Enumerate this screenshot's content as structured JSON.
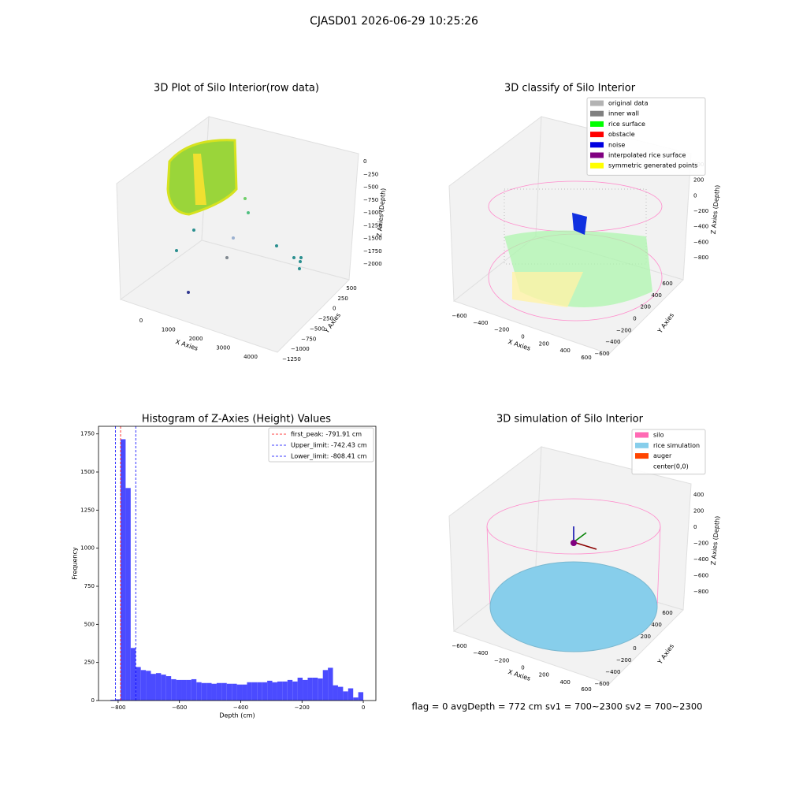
{
  "title": "CJASD01 2026-06-29 10:25:26",
  "footer": "flag = 0     avgDepth = 772 cm  sv1 = 700~2300  sv2 = 700~2300",
  "chart_data": [
    {
      "type": "scatter3d",
      "title": "3D Plot of Silo Interior(row data)",
      "xlabel": "X Axies",
      "ylabel": "Y Axies",
      "zlabel": "Z Axies (Depth)",
      "xticks": [
        0,
        1000,
        2000,
        3000,
        4000
      ],
      "yticks": [
        500,
        250,
        0,
        {
          "value": -250,
          "label": "−250"
        },
        {
          "value": -500,
          "label": "−500"
        },
        {
          "value": -750,
          "label": "−750"
        },
        {
          "value": -1000,
          "label": "−1000"
        },
        {
          "value": -1250,
          "label": "−1250"
        }
      ],
      "zticks": [
        0,
        {
          "value": -250,
          "label": "−250"
        },
        {
          "value": -500,
          "label": "−500"
        },
        {
          "value": -750,
          "label": "−750"
        },
        {
          "value": -1000,
          "label": "−1000"
        },
        {
          "value": -1250,
          "label": "−1250"
        },
        {
          "value": -1500,
          "label": "−1500"
        },
        {
          "value": -1750,
          "label": "−1750"
        },
        {
          "value": -2000,
          "label": "−2000"
        }
      ]
    },
    {
      "type": "scatter3d",
      "title": "3D classify of Silo Interior",
      "xlabel": "X Axies",
      "ylabel": "Y Axies",
      "zlabel": "Z Axies (Depth)",
      "xticks": [
        {
          "value": -600,
          "label": "−600"
        },
        {
          "value": -400,
          "label": "−400"
        },
        {
          "value": -200,
          "label": "−200"
        },
        0,
        200,
        400,
        600
      ],
      "yticks": [
        {
          "value": -600,
          "label": "−600"
        },
        {
          "value": -400,
          "label": "−400"
        },
        {
          "value": -200,
          "label": "−200"
        },
        0,
        200,
        400,
        600
      ],
      "zticks": [
        400,
        200,
        0,
        {
          "value": -200,
          "label": "−200"
        },
        {
          "value": -400,
          "label": "−400"
        },
        {
          "value": -600,
          "label": "−600"
        },
        {
          "value": -800,
          "label": "−800"
        }
      ],
      "legend": [
        {
          "name": "original data",
          "color": "#b3b3b3"
        },
        {
          "name": "inner wall",
          "color": "#808080"
        },
        {
          "name": "rice surface",
          "color": "#00ff00"
        },
        {
          "name": "obstacle",
          "color": "#ff0000"
        },
        {
          "name": "noise",
          "color": "#0000e0"
        },
        {
          "name": "interpolated rice surface",
          "color": "#800080"
        },
        {
          "name": "symmetric generated points",
          "color": "#ffff00"
        }
      ]
    },
    {
      "type": "histogram",
      "title": "Histogram of Z-Axies (Height) Values",
      "xlabel": "Depth (cm)",
      "ylabel": "Frequency",
      "color": "#4b4bff",
      "bins": [
        -825,
        -808.5,
        -792,
        -775.5,
        -759,
        -742.5,
        -726,
        -709.5,
        -693,
        -676.5,
        -660,
        -643.5,
        -627,
        -610.5,
        -594,
        -577.5,
        -561,
        -544.5,
        -528,
        -511.5,
        -495,
        -478.5,
        -462,
        -445.5,
        -429,
        -412.5,
        -396,
        -379.5,
        -363,
        -346.5,
        -330,
        -313.5,
        -297,
        -280.5,
        -264,
        -247.5,
        -231,
        -214.5,
        -198,
        -181.5,
        -165,
        -148.5,
        -132,
        -115.5,
        -99,
        -82.5,
        -66,
        -49.5,
        -33,
        -16.5,
        0
      ],
      "counts": [
        5,
        8,
        1715,
        1395,
        345,
        220,
        200,
        195,
        175,
        180,
        170,
        160,
        140,
        135,
        135,
        135,
        140,
        120,
        115,
        115,
        110,
        115,
        115,
        110,
        110,
        105,
        105,
        120,
        120,
        120,
        120,
        130,
        120,
        125,
        125,
        135,
        125,
        150,
        135,
        150,
        150,
        145,
        200,
        215,
        100,
        90,
        60,
        80,
        20,
        55
      ],
      "xlim": [
        -864,
        41
      ],
      "ylim": [
        0,
        1800
      ],
      "xticks": [
        {
          "value": -800,
          "label": "−800"
        },
        {
          "value": -600,
          "label": "−600"
        },
        {
          "value": -400,
          "label": "−400"
        },
        {
          "value": -200,
          "label": "−200"
        },
        0
      ],
      "yticks": [
        0,
        250,
        500,
        750,
        1000,
        1250,
        1500,
        1750
      ],
      "vlines": [
        {
          "name": "first_peak: -791.91 cm",
          "value": -791.91,
          "color": "#ff0000"
        },
        {
          "name": "Upper_limit: -742.43 cm",
          "value": -742.43,
          "color": "#0000ff"
        },
        {
          "name": "Lower_limit: -808.41 cm",
          "value": -808.41,
          "color": "#0000ff"
        }
      ]
    },
    {
      "type": "scatter3d",
      "title": "3D simulation of Silo Interior",
      "xlabel": "X Axies",
      "ylabel": "Y Axies",
      "zlabel": "Z Axies (Depth)",
      "xticks": [
        {
          "value": -600,
          "label": "−600"
        },
        {
          "value": -400,
          "label": "−400"
        },
        {
          "value": -200,
          "label": "−200"
        },
        0,
        200,
        400,
        600
      ],
      "yticks": [
        {
          "value": -600,
          "label": "−600"
        },
        {
          "value": -400,
          "label": "−400"
        },
        {
          "value": -200,
          "label": "−200"
        },
        0,
        200,
        400,
        600
      ],
      "zticks": [
        400,
        200,
        0,
        {
          "value": -200,
          "label": "−200"
        },
        {
          "value": -400,
          "label": "−400"
        },
        {
          "value": -600,
          "label": "−600"
        },
        {
          "value": -800,
          "label": "−800"
        }
      ],
      "legend": [
        {
          "name": "silo",
          "color": "#ff69b4"
        },
        {
          "name": "rice simulation",
          "color": "#87ceeb"
        },
        {
          "name": "auger",
          "color": "#ff4500"
        },
        {
          "name": "center(0,0)",
          "color": "#ffffff"
        }
      ]
    }
  ]
}
